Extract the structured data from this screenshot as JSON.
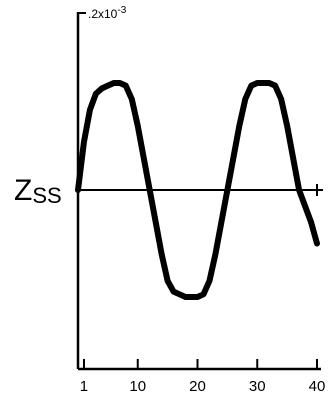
{
  "chart_data": {
    "type": "line",
    "title": "",
    "xlabel": "",
    "ylabel": "Z",
    "ylabel_subscript": "SS",
    "y_top_annotation": "•",
    "y_top_value": ".2x10",
    "y_top_exponent": "-3",
    "xlim": [
      0,
      40
    ],
    "ylim": [
      -0.0004,
      0.0004
    ],
    "x_ticks": [
      1,
      10,
      20,
      30,
      40
    ],
    "x_tick_labels": [
      "1",
      "10",
      "20",
      "30",
      "40"
    ],
    "grid": false,
    "series": [
      {
        "x": [
          0,
          1,
          2,
          3,
          4,
          5,
          6,
          7,
          8,
          9,
          10,
          11,
          12,
          13,
          14,
          15,
          16,
          17,
          18,
          19,
          20,
          21,
          22,
          23,
          24,
          25,
          26,
          27,
          28,
          29,
          30,
          31,
          32,
          33,
          34,
          35,
          36,
          37,
          38,
          39,
          40
        ],
        "y": [
          0,
          9e-05,
          0.00015,
          0.00018,
          0.00019,
          0.000195,
          0.0002,
          0.0002,
          0.000195,
          0.00017,
          0.00012,
          6e-05,
          0,
          -6e-05,
          -0.00012,
          -0.00017,
          -0.00019,
          -0.000195,
          -0.0002,
          -0.0002,
          -0.0002,
          -0.000195,
          -0.00017,
          -0.00012,
          -6e-05,
          0,
          6e-05,
          0.00012,
          0.00017,
          0.000195,
          0.0002,
          0.0002,
          0.0002,
          0.000195,
          0.00017,
          0.00012,
          6e-05,
          0,
          -3e-05,
          -6e-05,
          -0.0001
        ]
      }
    ]
  }
}
